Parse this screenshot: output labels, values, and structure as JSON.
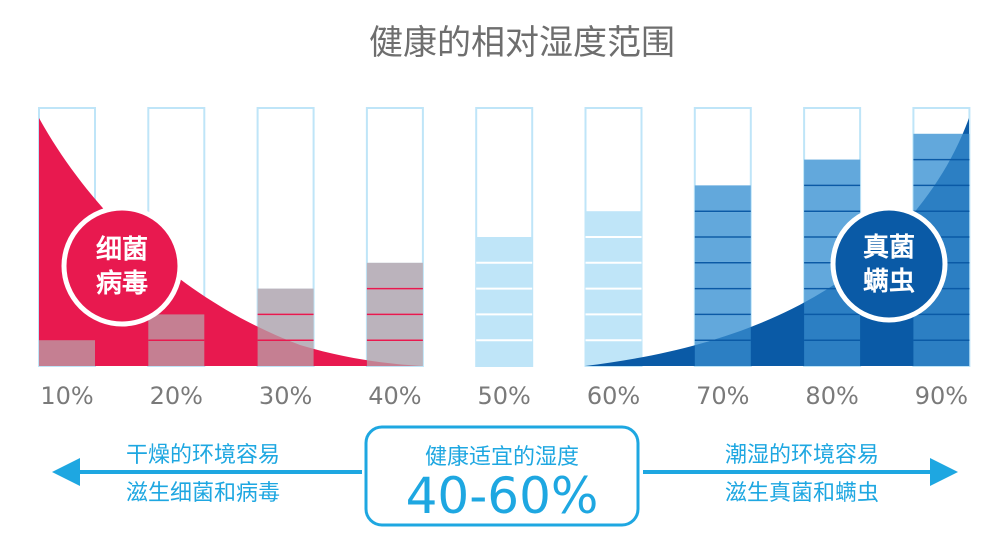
{
  "chart_data": {
    "type": "bar",
    "title": "健康的相对湿度范围",
    "categories": [
      "10%",
      "20%",
      "30%",
      "40%",
      "50%",
      "60%",
      "70%",
      "80%",
      "90%"
    ],
    "values": [
      10,
      20,
      30,
      40,
      50,
      60,
      70,
      80,
      90
    ],
    "ylim": [
      0,
      100
    ],
    "xlabel": "",
    "ylabel": "",
    "grid": false,
    "curves": [
      {
        "label_line1": "细菌",
        "label_line2": "病毒",
        "color": "#e8194f",
        "side": "left"
      },
      {
        "label_line1": "真菌",
        "label_line2": "螨虫",
        "color": "#0a5aa6",
        "side": "right"
      }
    ]
  },
  "zones": {
    "left": {
      "line1": "干燥的环境容易",
      "line2": "滋生细菌和病毒"
    },
    "center": {
      "line1": "健康适宜的湿度",
      "range": "40-60%"
    },
    "right": {
      "line1": "潮湿的环境容易",
      "line2": "滋生真菌和螨虫"
    }
  },
  "colors": {
    "bar_fill": "#bfe5f8",
    "bar_outline": "#bfe5f8",
    "red": "#e8194f",
    "blue": "#0a5aa6",
    "accent": "#1ea7e1"
  }
}
